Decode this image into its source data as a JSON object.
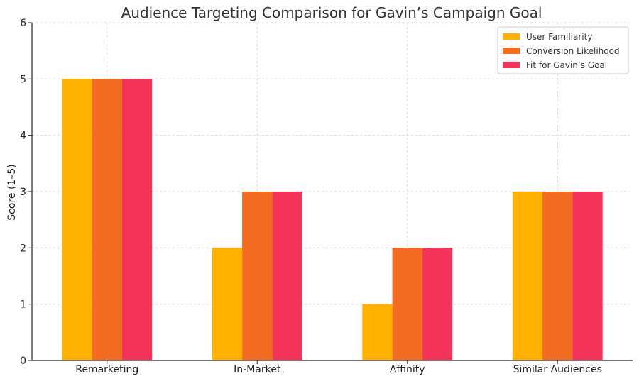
{
  "chart_data": {
    "type": "bar",
    "title": "Audience Targeting Comparison for Gavin’s Campaign Goal",
    "xlabel": "",
    "ylabel": "Score (1–5)",
    "ylim": [
      0,
      6
    ],
    "yticks": [
      "0",
      "1",
      "2",
      "3",
      "4",
      "5",
      "6"
    ],
    "grid": true,
    "legend_position": "top-right",
    "categories": [
      "Remarketing",
      "In-Market",
      "Affinity",
      "Similar Audiences"
    ],
    "series": [
      {
        "name": "User Familiarity",
        "color": "#FFB000",
        "values": [
          5,
          2,
          1,
          3
        ]
      },
      {
        "name": "Conversion Likelihood",
        "color": "#F26B21",
        "values": [
          5,
          3,
          2,
          3
        ]
      },
      {
        "name": "Fit for Gavin’s Goal",
        "color": "#F4335A",
        "values": [
          5,
          3,
          2,
          3
        ]
      }
    ]
  }
}
